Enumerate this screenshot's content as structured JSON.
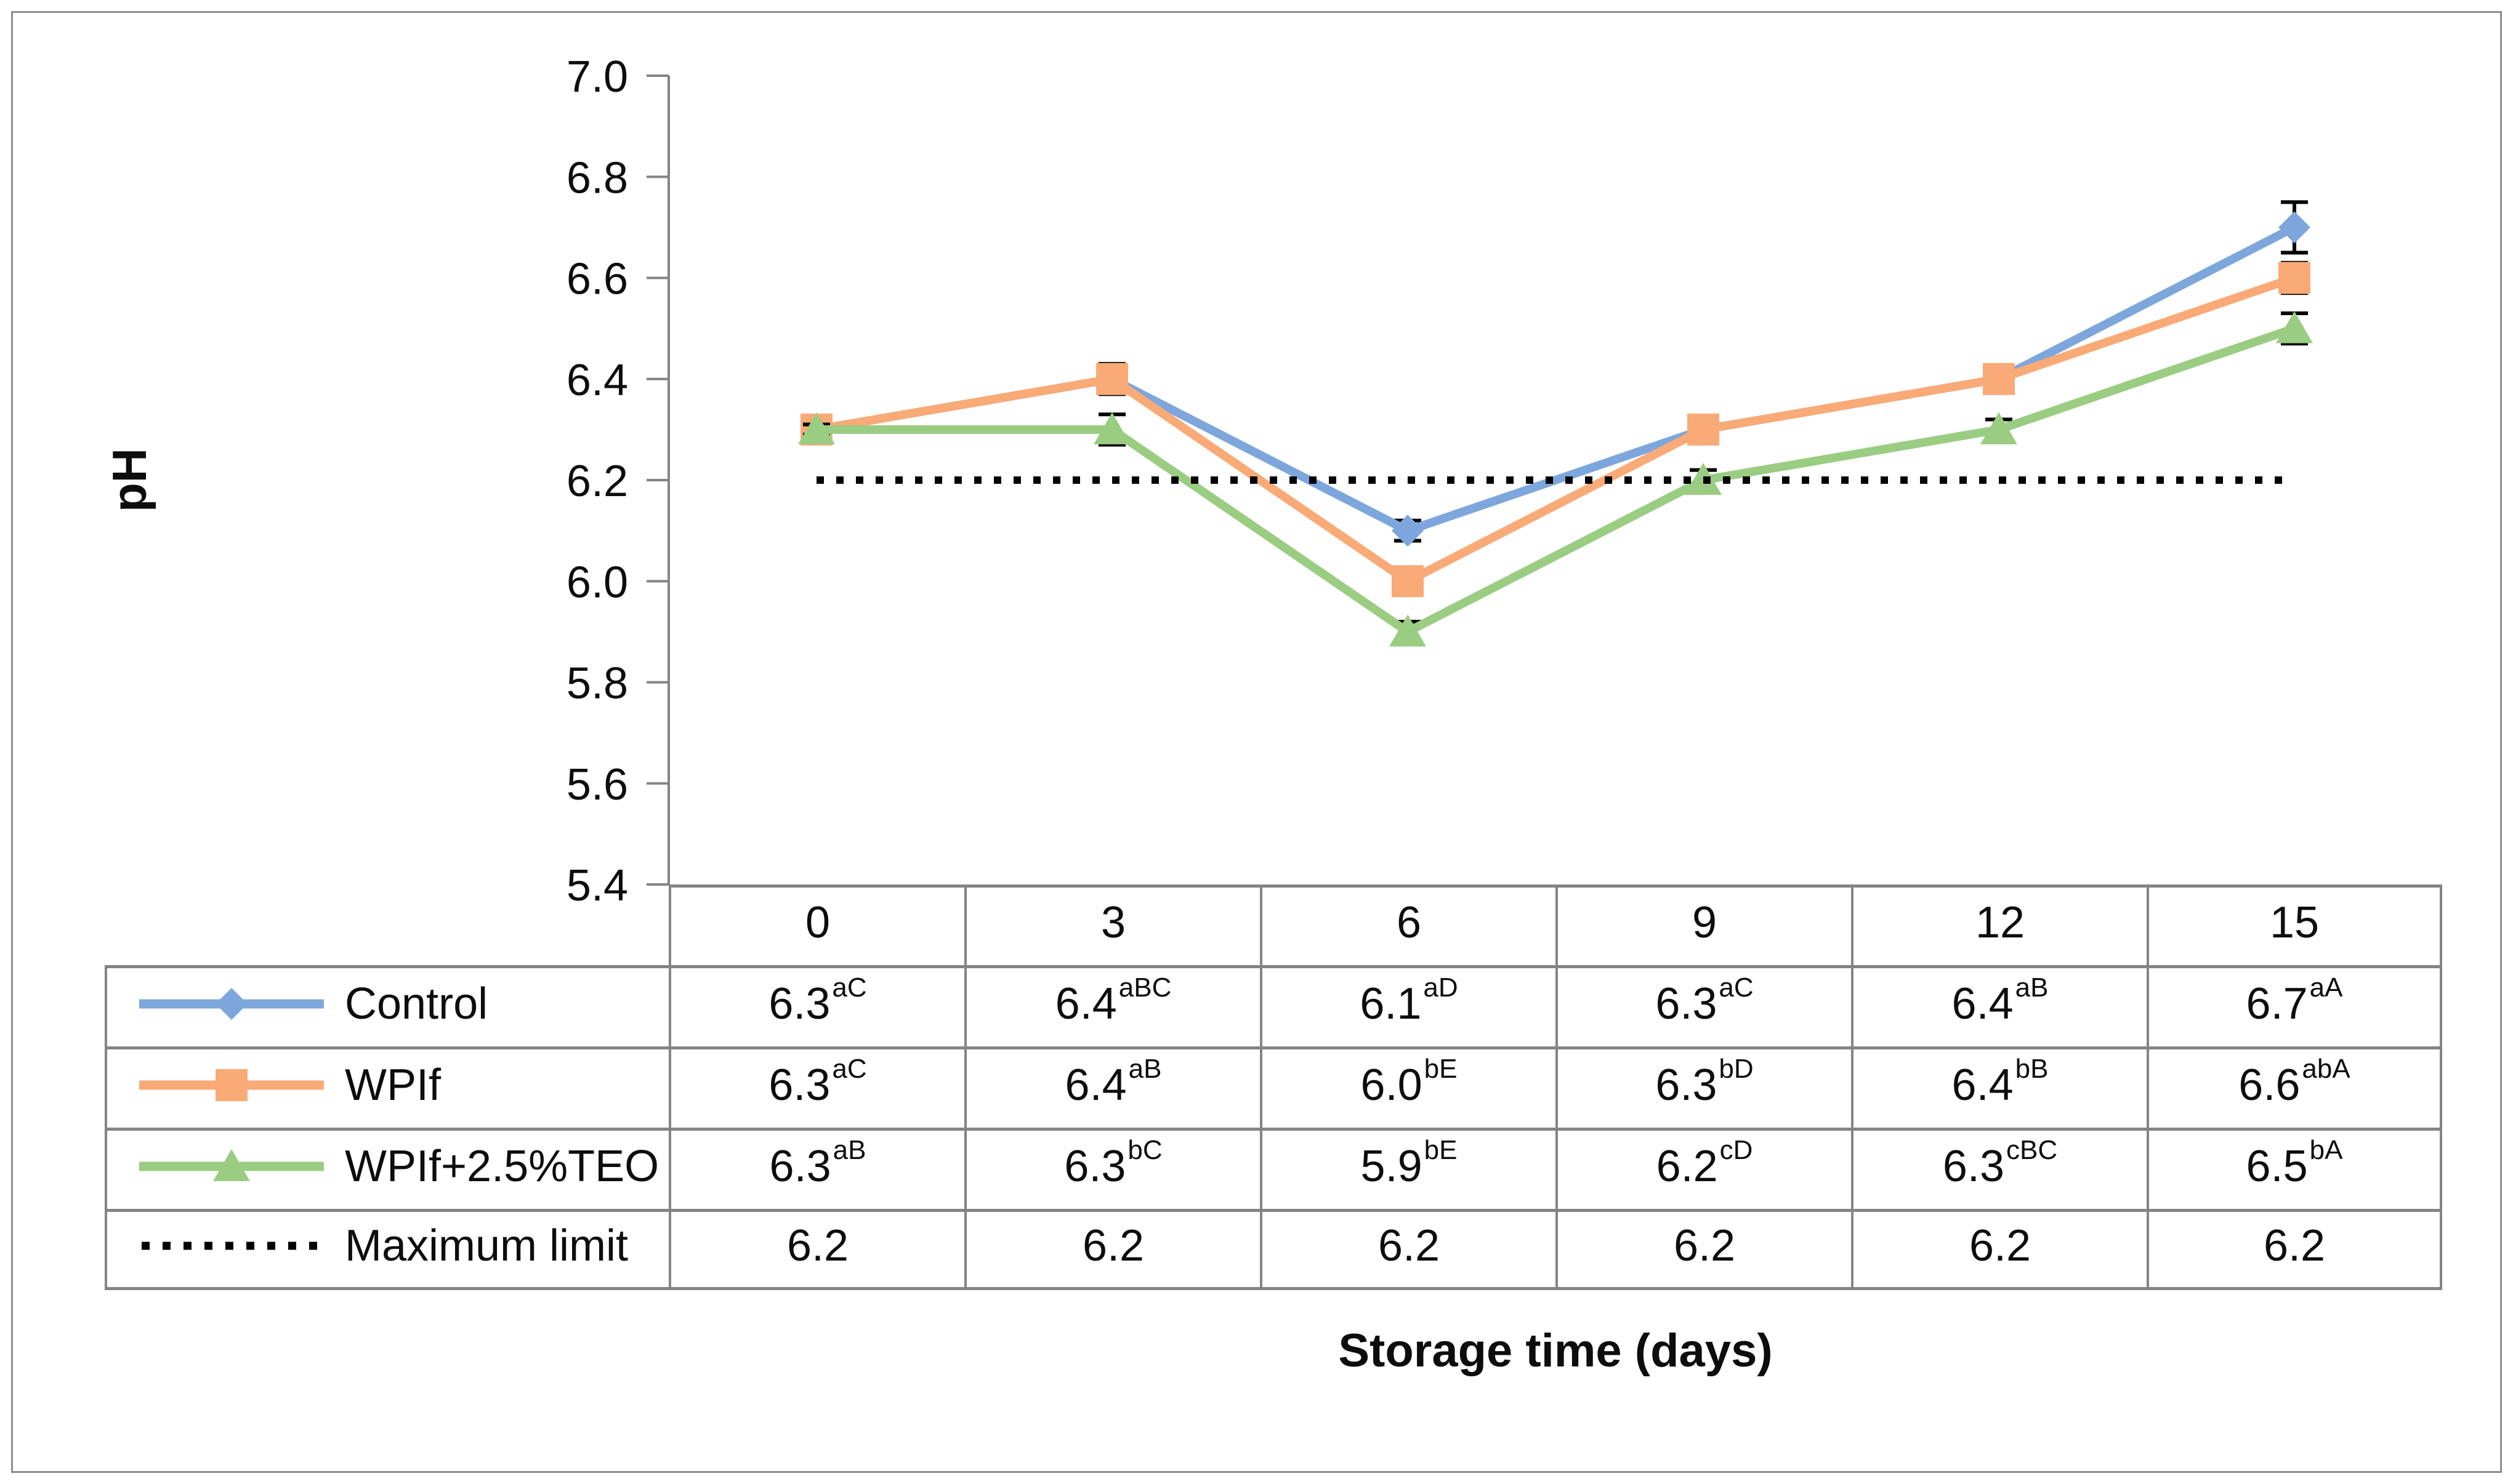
{
  "chart_data": {
    "type": "line",
    "title": "",
    "xlabel": "Storage time (days)",
    "ylabel": "pH",
    "x": [
      0,
      3,
      6,
      9,
      12,
      15
    ],
    "ylim": [
      5.4,
      7.0
    ],
    "ytick_step": 0.2,
    "yticks": [
      "7.0",
      "6.8",
      "6.6",
      "6.4",
      "6.2",
      "6.0",
      "5.8",
      "5.6",
      "5.4"
    ],
    "grid": false,
    "legend_position": "table-left-column",
    "series": [
      {
        "name": "Control",
        "marker": "diamond",
        "style": "solid",
        "color": "#7da7dc",
        "values": [
          6.3,
          6.4,
          6.1,
          6.3,
          6.4,
          6.7
        ],
        "errors": [
          0.01,
          0.03,
          0.02,
          0.01,
          0.01,
          0.05
        ]
      },
      {
        "name": "WPIf",
        "marker": "square",
        "style": "solid",
        "color": "#f9aa77",
        "values": [
          6.3,
          6.4,
          6.0,
          6.3,
          6.4,
          6.6
        ],
        "errors": [
          0.01,
          0.02,
          0.02,
          0.01,
          0.01,
          0.03
        ]
      },
      {
        "name": "WPIf+2.5%TEO",
        "marker": "triangle",
        "style": "solid",
        "color": "#9acd82",
        "values": [
          6.3,
          6.3,
          5.9,
          6.2,
          6.3,
          6.5
        ],
        "errors": [
          0.01,
          0.03,
          0.02,
          0.02,
          0.02,
          0.03
        ]
      },
      {
        "name": "Maximum limit",
        "marker": "none",
        "style": "dotted",
        "color": "#000000",
        "values": [
          6.2,
          6.2,
          6.2,
          6.2,
          6.2,
          6.2
        ],
        "errors": [
          0,
          0,
          0,
          0,
          0,
          0
        ]
      }
    ]
  },
  "table": {
    "header": [
      "0",
      "3",
      "6",
      "9",
      "12",
      "15"
    ],
    "rows": [
      {
        "label": "Control",
        "cells": [
          {
            "v": "6.3",
            "sup": "aC"
          },
          {
            "v": "6.4",
            "sup": "aBC"
          },
          {
            "v": "6.1",
            "sup": "aD"
          },
          {
            "v": "6.3",
            "sup": "aC"
          },
          {
            "v": "6.4",
            "sup": "aB"
          },
          {
            "v": "6.7",
            "sup": "aA"
          }
        ]
      },
      {
        "label": "WPIf",
        "cells": [
          {
            "v": "6.3",
            "sup": "aC"
          },
          {
            "v": "6.4",
            "sup": "aB"
          },
          {
            "v": "6.0",
            "sup": "bE"
          },
          {
            "v": "6.3",
            "sup": "bD"
          },
          {
            "v": "6.4",
            "sup": "bB"
          },
          {
            "v": "6.6",
            "sup": "abA"
          }
        ]
      },
      {
        "label": "WPIf+2.5%TEO",
        "cells": [
          {
            "v": "6.3",
            "sup": "aB"
          },
          {
            "v": "6.3",
            "sup": "bC"
          },
          {
            "v": "5.9",
            "sup": "bE"
          },
          {
            "v": "6.2",
            "sup": "cD"
          },
          {
            "v": "6.3",
            "sup": "cBC"
          },
          {
            "v": "6.5",
            "sup": "bA"
          }
        ]
      },
      {
        "label": "Maximum limit",
        "cells": [
          {
            "v": "6.2"
          },
          {
            "v": "6.2"
          },
          {
            "v": "6.2"
          },
          {
            "v": "6.2"
          },
          {
            "v": "6.2"
          },
          {
            "v": "6.2"
          }
        ]
      }
    ]
  },
  "colors": {
    "axis": "#848484",
    "table_border": "#848484",
    "error_bar": "#000000",
    "text": "#0d0d0d",
    "frame_border": "#8c8c8c",
    "background": "#ffffff"
  }
}
